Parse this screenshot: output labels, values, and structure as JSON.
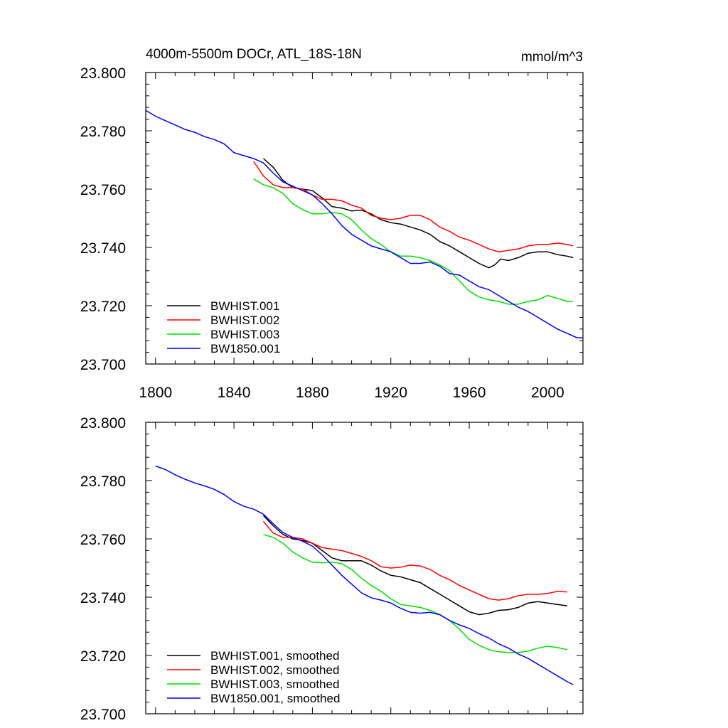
{
  "chart_data": [
    {
      "type": "line",
      "title": "4000m-5500m DOCr, ATL_18S-18N",
      "units": "mmol/m^3",
      "xlim": [
        1795,
        2018
      ],
      "ylim": [
        23.7,
        23.8
      ],
      "yticks": [
        23.8,
        23.78,
        23.76,
        23.74,
        23.72,
        23.7
      ],
      "ytick_labels": [
        "23.800",
        "23.780",
        "23.760",
        "23.740",
        "23.720",
        "23.700"
      ],
      "xticks": [
        1800,
        1840,
        1880,
        1920,
        1960,
        2000
      ],
      "xtick_labels": [
        "1800",
        "1840",
        "1880",
        "1920",
        "1960",
        "2000"
      ],
      "legend_position": "bottom-left",
      "series": [
        {
          "name": "BWHIST.001",
          "color": "#000000",
          "x": [
            1855,
            1860,
            1865,
            1870,
            1875,
            1880,
            1885,
            1890,
            1895,
            1900,
            1905,
            1910,
            1915,
            1920,
            1925,
            1930,
            1935,
            1940,
            1945,
            1950,
            1955,
            1960,
            1965,
            1970,
            1973,
            1976,
            1980,
            1985,
            1990,
            1995,
            2000,
            2005,
            2010,
            2013
          ],
          "y": [
            23.7705,
            23.7675,
            23.763,
            23.7605,
            23.76,
            23.7595,
            23.757,
            23.754,
            23.7535,
            23.7525,
            23.7528,
            23.7515,
            23.7495,
            23.7485,
            23.748,
            23.747,
            23.746,
            23.7445,
            23.742,
            23.7405,
            23.7385,
            23.7365,
            23.7345,
            23.733,
            23.734,
            23.736,
            23.7355,
            23.7365,
            23.738,
            23.7385,
            23.7385,
            23.7375,
            23.737,
            23.7365
          ]
        },
        {
          "name": "BWHIST.002",
          "color": "#ff0000",
          "x": [
            1850,
            1855,
            1860,
            1865,
            1870,
            1875,
            1880,
            1885,
            1890,
            1895,
            1900,
            1905,
            1910,
            1915,
            1920,
            1925,
            1930,
            1935,
            1940,
            1945,
            1950,
            1955,
            1960,
            1965,
            1970,
            1975,
            1980,
            1985,
            1990,
            1995,
            2000,
            2005,
            2010,
            2013
          ],
          "y": [
            23.7695,
            23.7645,
            23.7615,
            23.7605,
            23.7605,
            23.76,
            23.758,
            23.7565,
            23.7565,
            23.756,
            23.7545,
            23.7535,
            23.751,
            23.75,
            23.7495,
            23.75,
            23.751,
            23.751,
            23.7495,
            23.747,
            23.7455,
            23.7435,
            23.7425,
            23.741,
            23.7395,
            23.7385,
            23.739,
            23.7395,
            23.7405,
            23.741,
            23.741,
            23.7415,
            23.741,
            23.7405
          ]
        },
        {
          "name": "BWHIST.003",
          "color": "#00e000",
          "x": [
            1850,
            1855,
            1860,
            1865,
            1870,
            1875,
            1880,
            1885,
            1890,
            1895,
            1900,
            1905,
            1910,
            1915,
            1920,
            1925,
            1930,
            1935,
            1940,
            1945,
            1950,
            1955,
            1960,
            1965,
            1970,
            1975,
            1980,
            1985,
            1990,
            1995,
            2000,
            2005,
            2010,
            2013
          ],
          "y": [
            23.7635,
            23.7615,
            23.7605,
            23.7585,
            23.755,
            23.753,
            23.7515,
            23.7515,
            23.752,
            23.7515,
            23.7495,
            23.746,
            23.743,
            23.741,
            23.7385,
            23.737,
            23.737,
            23.7365,
            23.7355,
            23.734,
            23.732,
            23.7285,
            23.725,
            23.723,
            23.722,
            23.7215,
            23.7205,
            23.7205,
            23.7215,
            23.722,
            23.7235,
            23.7225,
            23.7215,
            23.7215
          ]
        },
        {
          "name": "BW1850.001",
          "color": "#0000ff",
          "x": [
            1795,
            1800,
            1805,
            1810,
            1815,
            1820,
            1825,
            1830,
            1835,
            1840,
            1845,
            1850,
            1855,
            1860,
            1865,
            1870,
            1875,
            1880,
            1885,
            1890,
            1895,
            1900,
            1905,
            1910,
            1915,
            1920,
            1925,
            1930,
            1935,
            1940,
            1945,
            1950,
            1955,
            1960,
            1965,
            1970,
            1975,
            1980,
            1985,
            1990,
            1995,
            2000,
            2005,
            2010,
            2015,
            2018
          ],
          "y": [
            23.787,
            23.785,
            23.7835,
            23.782,
            23.7805,
            23.7795,
            23.778,
            23.777,
            23.7755,
            23.7725,
            23.7715,
            23.7705,
            23.769,
            23.7655,
            23.7625,
            23.761,
            23.7595,
            23.758,
            23.755,
            23.7515,
            23.7475,
            23.7445,
            23.7425,
            23.7405,
            23.7395,
            23.7385,
            23.7365,
            23.7345,
            23.7345,
            23.735,
            23.7335,
            23.731,
            23.7305,
            23.7285,
            23.7265,
            23.7255,
            23.7235,
            23.7215,
            23.7195,
            23.718,
            23.716,
            23.714,
            23.712,
            23.7105,
            23.709,
            23.709
          ]
        }
      ]
    },
    {
      "type": "line",
      "title": "",
      "xlim": [
        1795,
        2018
      ],
      "ylim": [
        23.7,
        23.8
      ],
      "yticks": [
        23.8,
        23.78,
        23.76,
        23.74,
        23.72,
        23.7
      ],
      "ytick_labels": [
        "23.800",
        "23.780",
        "23.760",
        "23.740",
        "23.720",
        "23.700"
      ],
      "xticks": [
        1800,
        1840,
        1880,
        1920,
        1960,
        2000
      ],
      "legend_position": "bottom-left",
      "series": [
        {
          "name": "BWHIST.001, smoothed",
          "color": "#000000",
          "x": [
            1855,
            1860,
            1865,
            1870,
            1875,
            1880,
            1885,
            1890,
            1895,
            1900,
            1905,
            1910,
            1915,
            1920,
            1925,
            1930,
            1935,
            1940,
            1945,
            1950,
            1955,
            1960,
            1965,
            1970,
            1975,
            1980,
            1985,
            1990,
            1995,
            2000,
            2005,
            2010
          ],
          "y": [
            23.768,
            23.7645,
            23.7615,
            23.76,
            23.7595,
            23.7585,
            23.756,
            23.7535,
            23.7525,
            23.7525,
            23.7525,
            23.751,
            23.749,
            23.7475,
            23.747,
            23.746,
            23.745,
            23.743,
            23.741,
            23.739,
            23.737,
            23.735,
            23.734,
            23.7345,
            23.7355,
            23.7357,
            23.7365,
            23.738,
            23.7385,
            23.738,
            23.7375,
            23.737
          ]
        },
        {
          "name": "BWHIST.002, smoothed",
          "color": "#ff0000",
          "x": [
            1855,
            1860,
            1865,
            1870,
            1875,
            1880,
            1885,
            1890,
            1895,
            1900,
            1905,
            1910,
            1915,
            1920,
            1925,
            1930,
            1935,
            1940,
            1945,
            1950,
            1955,
            1960,
            1965,
            1970,
            1975,
            1980,
            1985,
            1990,
            1995,
            2000,
            2005,
            2010
          ],
          "y": [
            23.766,
            23.762,
            23.7605,
            23.7605,
            23.76,
            23.7585,
            23.757,
            23.7565,
            23.756,
            23.755,
            23.754,
            23.7525,
            23.7505,
            23.75,
            23.7503,
            23.751,
            23.7507,
            23.7495,
            23.7475,
            23.746,
            23.744,
            23.7425,
            23.741,
            23.7395,
            23.739,
            23.7395,
            23.7405,
            23.741,
            23.741,
            23.7413,
            23.742,
            23.7418
          ]
        },
        {
          "name": "BWHIST.003, smoothed",
          "color": "#00e000",
          "x": [
            1855,
            1860,
            1865,
            1870,
            1875,
            1880,
            1885,
            1890,
            1895,
            1900,
            1905,
            1910,
            1915,
            1920,
            1925,
            1930,
            1935,
            1940,
            1945,
            1950,
            1955,
            1960,
            1965,
            1970,
            1975,
            1980,
            1985,
            1990,
            1995,
            2000,
            2005,
            2010
          ],
          "y": [
            23.7615,
            23.7605,
            23.7585,
            23.7555,
            23.7535,
            23.752,
            23.7518,
            23.752,
            23.7515,
            23.7495,
            23.7465,
            23.744,
            23.742,
            23.7395,
            23.7375,
            23.737,
            23.7365,
            23.7355,
            23.734,
            23.732,
            23.729,
            23.7255,
            23.7235,
            23.722,
            23.7213,
            23.721,
            23.721,
            23.7215,
            23.7225,
            23.7232,
            23.7227,
            23.722
          ]
        },
        {
          "name": "BW1850.001, smoothed",
          "color": "#0000ff",
          "x": [
            1800,
            1805,
            1810,
            1815,
            1820,
            1825,
            1830,
            1835,
            1840,
            1845,
            1850,
            1855,
            1860,
            1865,
            1870,
            1875,
            1880,
            1885,
            1890,
            1895,
            1900,
            1905,
            1910,
            1915,
            1920,
            1925,
            1930,
            1935,
            1940,
            1945,
            1950,
            1955,
            1960,
            1965,
            1970,
            1975,
            1980,
            1985,
            1990,
            1995,
            2000,
            2005,
            2010,
            2013
          ],
          "y": [
            23.785,
            23.7838,
            23.782,
            23.7805,
            23.7792,
            23.7782,
            23.777,
            23.7752,
            23.7728,
            23.7712,
            23.7702,
            23.7685,
            23.7652,
            23.7622,
            23.7605,
            23.7592,
            23.7575,
            23.7545,
            23.751,
            23.7475,
            23.7445,
            23.7415,
            23.7398,
            23.739,
            23.738,
            23.7362,
            23.7348,
            23.7345,
            23.7348,
            23.734,
            23.732,
            23.7305,
            23.7293,
            23.7275,
            23.726,
            23.724,
            23.7225,
            23.7205,
            23.719,
            23.717,
            23.715,
            23.713,
            23.711,
            23.71
          ]
        }
      ]
    }
  ]
}
